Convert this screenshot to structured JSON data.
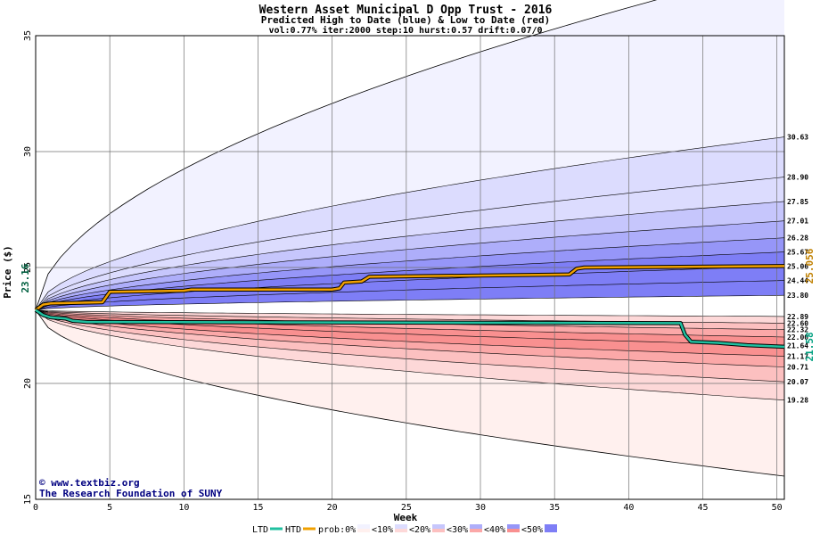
{
  "chart_data": {
    "type": "area",
    "title": "Western Asset Municipal D Opp Trust - 2016",
    "subtitle": "Predicted High to Date (blue) &  Low to Date (red)",
    "params": "vol:0.77% iter:2000 step:10 hurst:0.57 drift:0.07/0",
    "xlabel": "Week",
    "ylabel": "Price ($)",
    "xlim": [
      0,
      50.5
    ],
    "ylim": [
      15,
      35
    ],
    "x_ticks": [
      0,
      5,
      10,
      15,
      20,
      25,
      30,
      35,
      40,
      45,
      50
    ],
    "y_ticks": [
      15,
      20,
      25,
      30,
      35
    ],
    "grid": true,
    "start_price": 23.16,
    "start_label": "23.16",
    "percentile_right_values": [
      30.63,
      28.9,
      27.85,
      27.01,
      26.28,
      25.67,
      25.06,
      24.44,
      23.8,
      22.89,
      22.6,
      22.32,
      22.0,
      21.64,
      21.17,
      20.71,
      20.07,
      19.28
    ],
    "percentile_right_labels": [
      "30.63",
      "28.90",
      "27.85",
      "27.01",
      "26.28",
      "25.67",
      "25.06",
      "24.44",
      "23.80",
      "22.89",
      "22.60",
      "22.32",
      "22.00",
      "21.64",
      "21.17",
      "20.71",
      "20.07",
      "19.28"
    ],
    "envelope": {
      "upper_label": "",
      "lower_label": ""
    },
    "series": [
      {
        "name": "HTD",
        "color": "#f0a000",
        "points": [
          [
            0,
            23.16
          ],
          [
            0.5,
            23.4
          ],
          [
            1,
            23.45
          ],
          [
            4.5,
            23.5
          ],
          [
            5,
            23.95
          ],
          [
            10,
            24.0
          ],
          [
            10.5,
            24.05
          ],
          [
            20,
            24.05
          ],
          [
            20.5,
            24.1
          ],
          [
            20.8,
            24.35
          ],
          [
            22,
            24.4
          ],
          [
            22.5,
            24.6
          ],
          [
            36,
            24.7
          ],
          [
            36.5,
            24.95
          ],
          [
            37,
            25.0
          ],
          [
            50.5,
            25.06
          ]
        ],
        "final_label": "25.056"
      },
      {
        "name": "LTD",
        "color": "#20c0a0",
        "points": [
          [
            0,
            23.16
          ],
          [
            0.5,
            22.95
          ],
          [
            1,
            22.85
          ],
          [
            2,
            22.8
          ],
          [
            2.5,
            22.7
          ],
          [
            3.5,
            22.65
          ],
          [
            43.5,
            22.6
          ],
          [
            43.8,
            22.1
          ],
          [
            44.2,
            21.8
          ],
          [
            46,
            21.75
          ],
          [
            48,
            21.65
          ],
          [
            50.5,
            21.58
          ]
        ],
        "final_label": "21.58"
      }
    ],
    "legend": {
      "ltd": "LTD",
      "htd": "HTD",
      "prob": [
        "prob:0%",
        "<10%",
        "<20%",
        "<30%",
        "<40%",
        "<50%"
      ]
    },
    "colors": {
      "blue_bands": [
        "#f2f2ff",
        "#dcdcfe",
        "#c6c6fc",
        "#aeaefa",
        "#9696f8",
        "#7e7ef6"
      ],
      "red_bands": [
        "#fff0ee",
        "#fdd8d8",
        "#fcc0c0",
        "#fba8a8",
        "#f99090",
        "#f87878"
      ],
      "htd": "#f0a000",
      "ltd": "#20c0a0",
      "credit": "#000080"
    }
  },
  "credit": {
    "line1": "www.textbiz.org",
    "line2": "The Research Foundation of SUNY"
  }
}
